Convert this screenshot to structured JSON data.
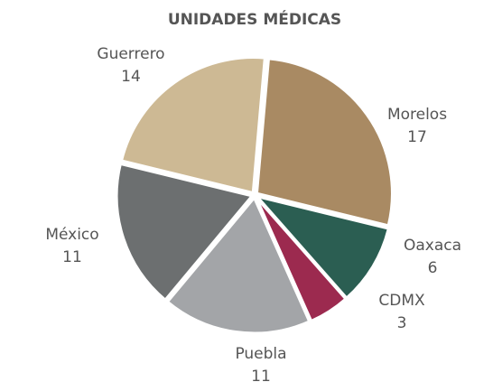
{
  "chart_data": {
    "type": "pie",
    "title": "UNIDADES MÉDICAS",
    "categories": [
      "Morelos",
      "Oaxaca",
      "CDMX",
      "Puebla",
      "México",
      "Guerrero"
    ],
    "values": [
      17,
      6,
      3,
      11,
      11,
      14
    ],
    "colors": [
      "#a98a63",
      "#2b5e52",
      "#9c2a4f",
      "#a3a5a8",
      "#6c6f70",
      "#cdb994"
    ]
  }
}
